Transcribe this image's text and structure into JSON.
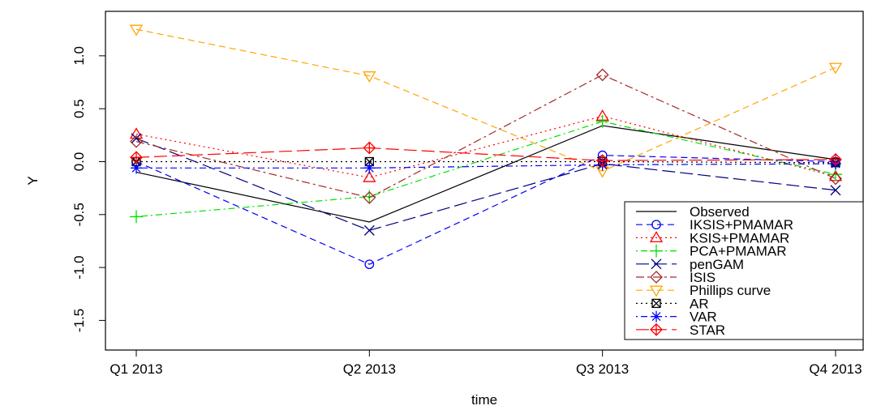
{
  "chart_data": {
    "type": "line",
    "xlabel": "time",
    "ylabel": "Y",
    "categories": [
      "Q1 2013",
      "Q2 2013",
      "Q3 2013",
      "Q4 2013"
    ],
    "ylim": [
      -1.78,
      1.42
    ],
    "yticks": [
      -1.5,
      -1.0,
      -0.5,
      0.0,
      0.5,
      1.0
    ],
    "ytick_labels": [
      "-1.5",
      "-1.0",
      "-0.5",
      "0.0",
      "0.5",
      "1.0"
    ],
    "grid": false,
    "legend_position": "bottom-right",
    "series": [
      {
        "name": "Observed",
        "values": [
          -0.1,
          -0.57,
          0.34,
          0.02
        ],
        "color": "#000000",
        "dash": "",
        "marker": "none"
      },
      {
        "name": "IKSIS+PMAMAR",
        "values": [
          0.0,
          -0.97,
          0.06,
          0.0
        ],
        "color": "#0000FF",
        "dash": "8,5",
        "marker": "circle"
      },
      {
        "name": "KSIS+PMAMAR",
        "values": [
          0.26,
          -0.15,
          0.43,
          -0.14
        ],
        "color": "#FF0000",
        "dash": "2,4",
        "marker": "triangle-up"
      },
      {
        "name": "PCA+PMAMAR",
        "values": [
          -0.52,
          -0.33,
          0.38,
          -0.12
        ],
        "color": "#00E000",
        "dash": "2,4,8,4",
        "marker": "plus"
      },
      {
        "name": "penGAM",
        "values": [
          0.22,
          -0.65,
          -0.02,
          -0.27
        ],
        "color": "#000080",
        "dash": "16,6",
        "marker": "cross"
      },
      {
        "name": "ISIS",
        "values": [
          0.19,
          -0.34,
          0.82,
          -0.16
        ],
        "color": "#A52A2A",
        "dash": "10,4,3,4",
        "marker": "diamond"
      },
      {
        "name": "Phillips curve",
        "values": [
          1.25,
          0.81,
          -0.09,
          0.89
        ],
        "color": "#FFA500",
        "dash": "8,5",
        "marker": "triangle-down"
      },
      {
        "name": "AR",
        "values": [
          0.0,
          0.0,
          0.0,
          -0.01
        ],
        "color": "#000000",
        "dash": "2,4",
        "marker": "square-x"
      },
      {
        "name": "VAR",
        "values": [
          -0.06,
          -0.06,
          -0.03,
          -0.02
        ],
        "color": "#0000FF",
        "dash": "2,4,8,4",
        "marker": "asterisk"
      },
      {
        "name": "STAR",
        "values": [
          0.04,
          0.13,
          0.01,
          0.02
        ],
        "color": "#FF0000",
        "dash": "16,6",
        "marker": "diamond-plus"
      }
    ]
  }
}
